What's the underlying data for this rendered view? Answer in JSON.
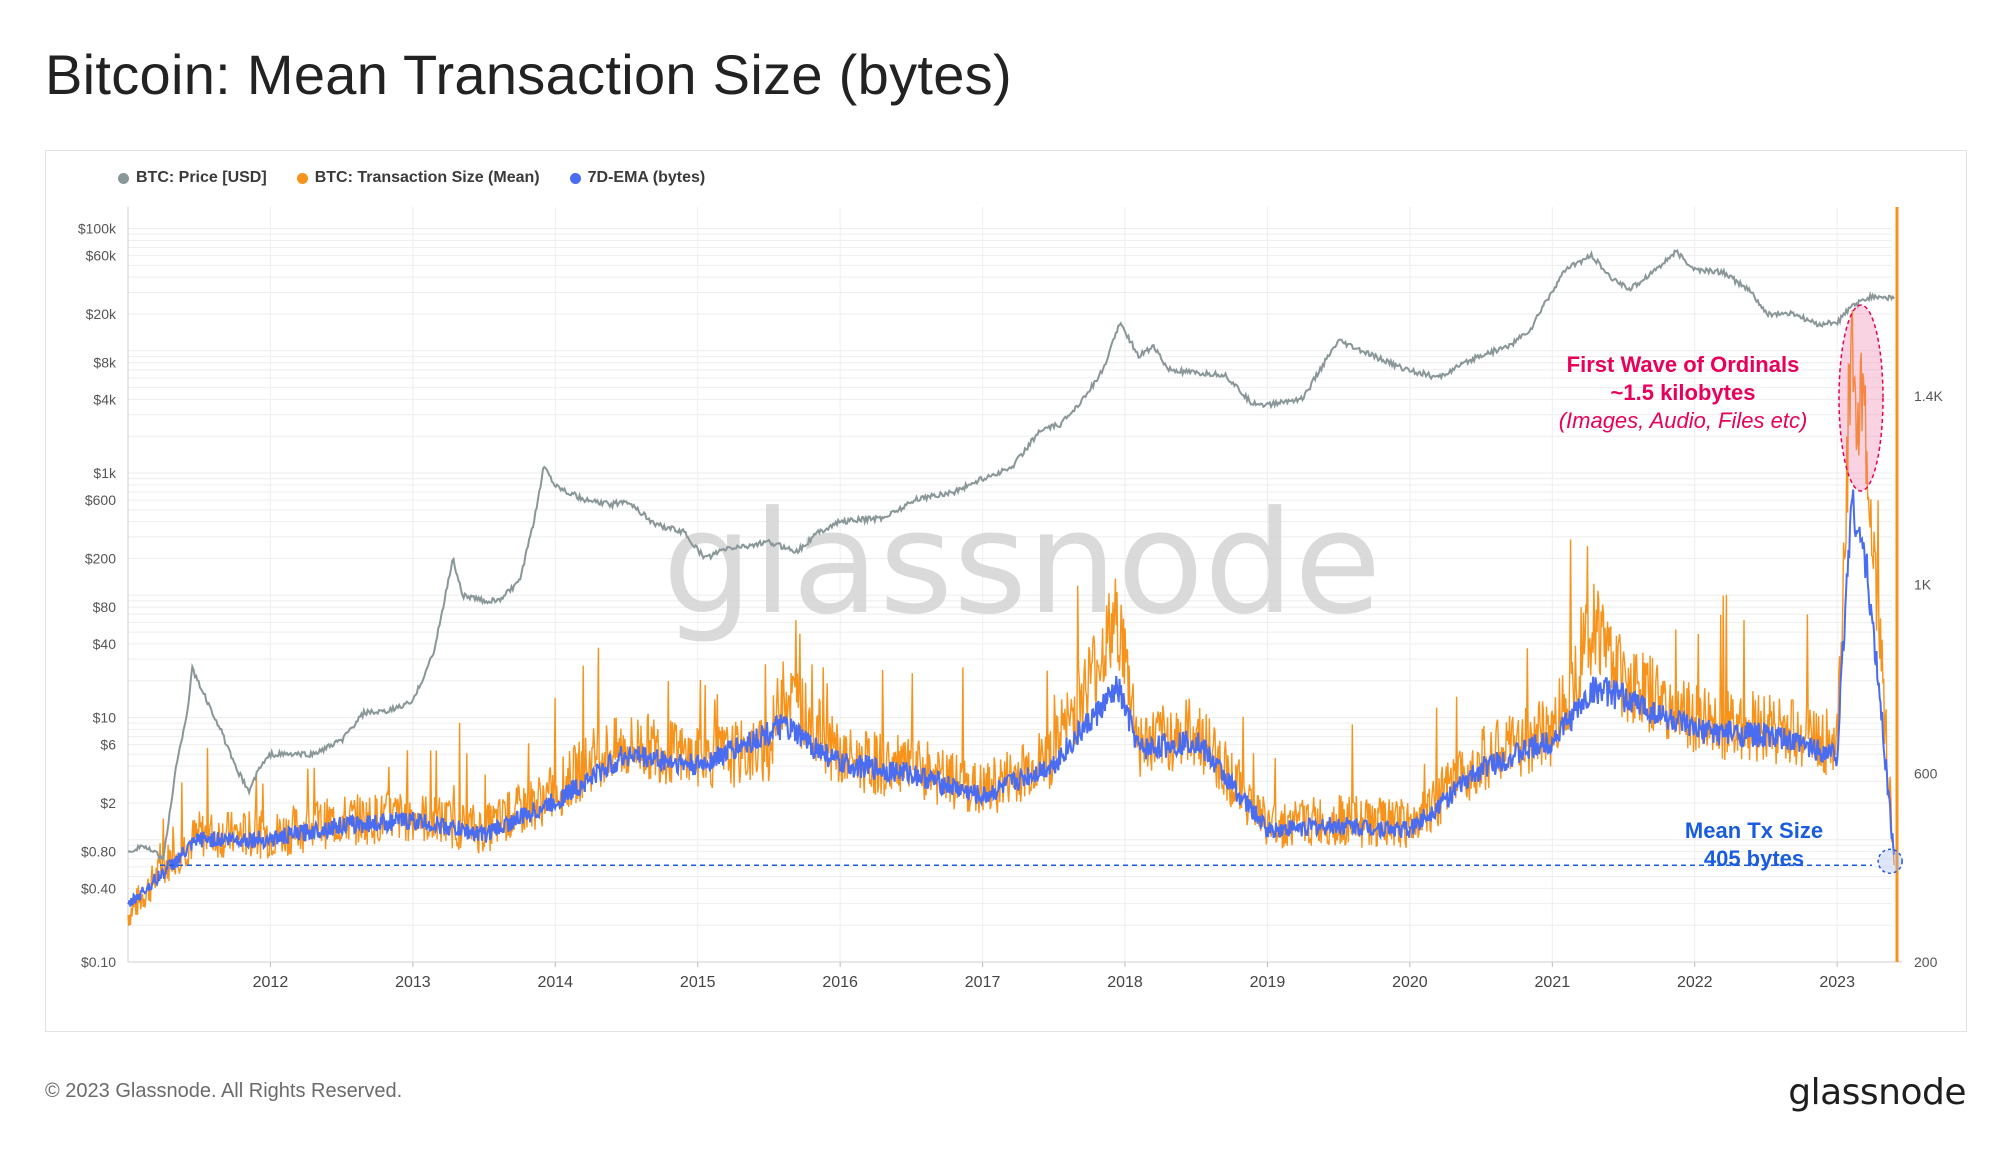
{
  "title": "Bitcoin: Mean Transaction Size (bytes)",
  "legend": [
    {
      "label": "BTC: Price [USD]",
      "color": "#8a9799"
    },
    {
      "label": "BTC: Transaction Size (Mean)",
      "color": "#f7931a"
    },
    {
      "label": "7D-EMA (bytes)",
      "color": "#4a6cf0"
    }
  ],
  "watermark": "glassnode",
  "footer": "© 2023 Glassnode. All Rights Reserved.",
  "brand": "glassnode",
  "annotations": {
    "ordinals_line1": "First Wave of Ordinals",
    "ordinals_line2": "~1.5 kilobytes",
    "ordinals_line3": "(Images, Audio, Files etc)",
    "mean_line1": "Mean Tx Size",
    "mean_line2": "405 bytes"
  },
  "colors": {
    "price": "#8a9799",
    "size": "#f7931a",
    "ema": "#4a6cf0",
    "pink": "#e8005a",
    "blue": "#1a5ce0"
  },
  "chart_data": {
    "type": "line",
    "title": "Bitcoin: Mean Transaction Size (bytes)",
    "x_range": [
      2011.0,
      2023.42
    ],
    "x_ticks": [
      "2012",
      "2013",
      "2014",
      "2015",
      "2016",
      "2017",
      "2018",
      "2019",
      "2020",
      "2021",
      "2022",
      "2023"
    ],
    "y_left": {
      "scale": "log",
      "range": [
        0.1,
        150000
      ],
      "ticks": [
        {
          "label": "$100k",
          "value": 100000
        },
        {
          "label": "$60k",
          "value": 60000
        },
        {
          "label": "$20k",
          "value": 20000
        },
        {
          "label": "$8k",
          "value": 8000
        },
        {
          "label": "$4k",
          "value": 4000
        },
        {
          "label": "$1k",
          "value": 1000
        },
        {
          "label": "$600",
          "value": 600
        },
        {
          "label": "$200",
          "value": 200
        },
        {
          "label": "$80",
          "value": 80
        },
        {
          "label": "$40",
          "value": 40
        },
        {
          "label": "$10",
          "value": 10
        },
        {
          "label": "$6",
          "value": 6
        },
        {
          "label": "$2",
          "value": 2
        },
        {
          "label": "$0.80",
          "value": 0.8
        },
        {
          "label": "$0.40",
          "value": 0.4
        },
        {
          "label": "$0.10",
          "value": 0.1
        }
      ]
    },
    "y_right": {
      "scale": "linear",
      "range": [
        200,
        1800
      ],
      "ticks": [
        {
          "label": "1.4K",
          "value": 1400
        },
        {
          "label": "1K",
          "value": 1000
        },
        {
          "label": "600",
          "value": 600
        },
        {
          "label": "200",
          "value": 200
        }
      ]
    },
    "reference_line": {
      "series": "BTC: Transaction Size (Mean)",
      "value": 405
    },
    "series": [
      {
        "name": "BTC: Price [USD]",
        "axis": "left",
        "points": [
          [
            2011.0,
            0.8
          ],
          [
            2011.1,
            0.9
          ],
          [
            2011.25,
            0.7
          ],
          [
            2011.33,
            3.5
          ],
          [
            2011.42,
            12
          ],
          [
            2011.45,
            25
          ],
          [
            2011.55,
            14
          ],
          [
            2011.65,
            8
          ],
          [
            2011.75,
            4
          ],
          [
            2011.85,
            2.5
          ],
          [
            2011.92,
            3.8
          ],
          [
            2012.0,
            5
          ],
          [
            2012.3,
            5
          ],
          [
            2012.5,
            6.5
          ],
          [
            2012.66,
            11
          ],
          [
            2012.8,
            11
          ],
          [
            2013.0,
            13.5
          ],
          [
            2013.15,
            35
          ],
          [
            2013.28,
            200
          ],
          [
            2013.35,
            100
          ],
          [
            2013.5,
            90
          ],
          [
            2013.6,
            90
          ],
          [
            2013.75,
            130
          ],
          [
            2013.85,
            400
          ],
          [
            2013.92,
            1150
          ],
          [
            2014.0,
            800
          ],
          [
            2014.2,
            600
          ],
          [
            2014.4,
            550
          ],
          [
            2014.5,
            600
          ],
          [
            2014.7,
            380
          ],
          [
            2014.9,
            330
          ],
          [
            2015.05,
            200
          ],
          [
            2015.2,
            240
          ],
          [
            2015.5,
            270
          ],
          [
            2015.7,
            230
          ],
          [
            2015.85,
            330
          ],
          [
            2016.0,
            400
          ],
          [
            2016.3,
            430
          ],
          [
            2016.55,
            620
          ],
          [
            2016.8,
            700
          ],
          [
            2017.0,
            900
          ],
          [
            2017.2,
            1100
          ],
          [
            2017.4,
            2200
          ],
          [
            2017.55,
            2500
          ],
          [
            2017.7,
            4000
          ],
          [
            2017.85,
            7000
          ],
          [
            2017.96,
            17000
          ],
          [
            2018.1,
            9000
          ],
          [
            2018.2,
            11000
          ],
          [
            2018.3,
            7000
          ],
          [
            2018.5,
            6500
          ],
          [
            2018.7,
            6400
          ],
          [
            2018.88,
            3800
          ],
          [
            2019.0,
            3600
          ],
          [
            2019.25,
            4100
          ],
          [
            2019.4,
            8000
          ],
          [
            2019.5,
            12000
          ],
          [
            2019.7,
            9500
          ],
          [
            2019.95,
            7200
          ],
          [
            2020.2,
            6000
          ],
          [
            2020.3,
            7000
          ],
          [
            2020.5,
            9200
          ],
          [
            2020.7,
            11000
          ],
          [
            2020.85,
            15000
          ],
          [
            2020.95,
            25000
          ],
          [
            2021.1,
            47000
          ],
          [
            2021.28,
            60000
          ],
          [
            2021.4,
            40000
          ],
          [
            2021.55,
            32000
          ],
          [
            2021.7,
            44000
          ],
          [
            2021.87,
            64000
          ],
          [
            2022.0,
            46000
          ],
          [
            2022.2,
            44000
          ],
          [
            2022.4,
            30000
          ],
          [
            2022.5,
            20000
          ],
          [
            2022.7,
            20000
          ],
          [
            2022.85,
            16500
          ],
          [
            2023.0,
            17000
          ],
          [
            2023.1,
            23000
          ],
          [
            2023.25,
            28000
          ],
          [
            2023.4,
            27000
          ]
        ]
      },
      {
        "name": "BTC: Transaction Size (Mean)",
        "axis": "right",
        "points": [
          [
            2011.0,
            300
          ],
          [
            2011.3,
            420
          ],
          [
            2011.5,
            470
          ],
          [
            2012.0,
            470
          ],
          [
            2012.5,
            500
          ],
          [
            2013.0,
            510
          ],
          [
            2013.5,
            480
          ],
          [
            2014.0,
            560
          ],
          [
            2014.3,
            640
          ],
          [
            2014.6,
            660
          ],
          [
            2015.0,
            630
          ],
          [
            2015.5,
            650
          ],
          [
            2015.6,
            780
          ],
          [
            2016.0,
            630
          ],
          [
            2016.5,
            610
          ],
          [
            2017.0,
            560
          ],
          [
            2017.5,
            640
          ],
          [
            2017.95,
            930
          ],
          [
            2018.1,
            660
          ],
          [
            2018.5,
            690
          ],
          [
            2019.0,
            490
          ],
          [
            2019.5,
            500
          ],
          [
            2020.0,
            490
          ],
          [
            2020.5,
            630
          ],
          [
            2021.0,
            690
          ],
          [
            2021.3,
            920
          ],
          [
            2021.5,
            800
          ],
          [
            2022.0,
            710
          ],
          [
            2022.5,
            700
          ],
          [
            2023.0,
            660
          ],
          [
            2023.1,
            1500
          ],
          [
            2023.2,
            1300
          ],
          [
            2023.3,
            900
          ],
          [
            2023.4,
            405
          ]
        ]
      },
      {
        "name": "7D-EMA (bytes)",
        "axis": "right",
        "points": [
          [
            2011.0,
            320
          ],
          [
            2011.5,
            460
          ],
          [
            2012.0,
            460
          ],
          [
            2012.5,
            490
          ],
          [
            2013.0,
            500
          ],
          [
            2013.5,
            470
          ],
          [
            2014.0,
            540
          ],
          [
            2014.5,
            640
          ],
          [
            2015.0,
            615
          ],
          [
            2015.6,
            700
          ],
          [
            2016.0,
            620
          ],
          [
            2016.5,
            600
          ],
          [
            2017.0,
            550
          ],
          [
            2017.5,
            620
          ],
          [
            2017.95,
            780
          ],
          [
            2018.1,
            650
          ],
          [
            2018.5,
            670
          ],
          [
            2019.0,
            480
          ],
          [
            2019.5,
            490
          ],
          [
            2020.0,
            480
          ],
          [
            2020.5,
            610
          ],
          [
            2021.0,
            670
          ],
          [
            2021.3,
            780
          ],
          [
            2021.5,
            760
          ],
          [
            2022.0,
            690
          ],
          [
            2022.5,
            680
          ],
          [
            2023.0,
            640
          ],
          [
            2023.1,
            1180
          ],
          [
            2023.2,
            1050
          ],
          [
            2023.3,
            760
          ],
          [
            2023.4,
            420
          ]
        ]
      }
    ]
  }
}
